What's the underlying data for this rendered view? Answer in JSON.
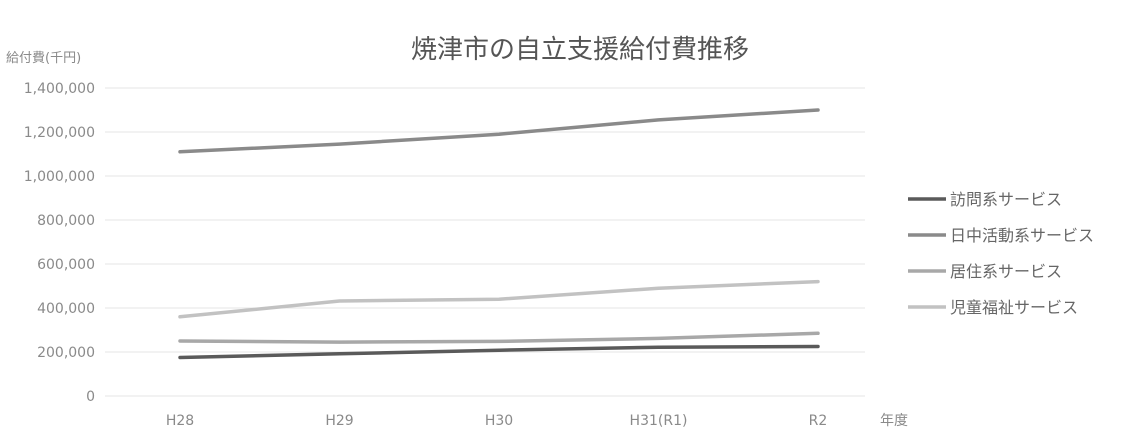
{
  "chart_data": {
    "type": "line",
    "title": "焼津市の自立支援給付費推移",
    "ylabel": "給付費(千円)",
    "xlabel": "年度",
    "categories": [
      "H28",
      "H29",
      "H30",
      "H31(R1)",
      "R2"
    ],
    "ylim": [
      0,
      1400000
    ],
    "yticks": [
      0,
      200000,
      400000,
      600000,
      800000,
      1000000,
      1200000,
      1400000
    ],
    "ytick_labels": [
      "0",
      "200,000",
      "400,000",
      "600,000",
      "800,000",
      "1,000,000",
      "1,200,000",
      "1,400,000"
    ],
    "grid": true,
    "legend_position": "right",
    "series": [
      {
        "name": "訪問系サービス",
        "values": [
          175000,
          192000,
          208000,
          222000,
          225000
        ],
        "color": "#5a5a5a"
      },
      {
        "name": "日中活動系サービス",
        "values": [
          1110000,
          1145000,
          1190000,
          1255000,
          1300000
        ],
        "color": "#8a8a8a"
      },
      {
        "name": "居住系サービス",
        "values": [
          250000,
          245000,
          248000,
          262000,
          285000
        ],
        "color": "#a8a8a8"
      },
      {
        "name": "児童福祉サービス",
        "values": [
          360000,
          432000,
          440000,
          490000,
          520000
        ],
        "color": "#c2c2c2"
      }
    ]
  }
}
